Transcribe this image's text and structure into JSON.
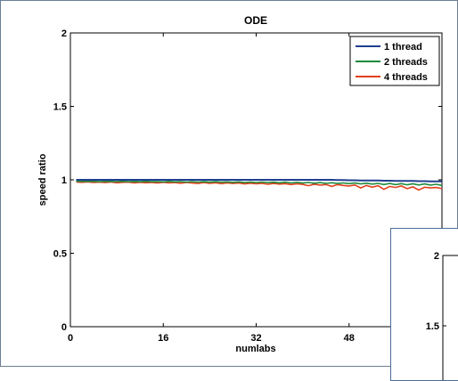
{
  "chart_data": [
    {
      "type": "line",
      "title": "ODE",
      "xlabel": "numlabs",
      "ylabel": "speed ratio",
      "xlim": [
        0,
        64
      ],
      "ylim": [
        0,
        2
      ],
      "x_ticks": [
        0,
        16,
        32,
        48
      ],
      "y_ticks": [
        0,
        0.5,
        1,
        1.5,
        2
      ],
      "y_tick_labels": [
        "0",
        "0.5",
        "1",
        "1.5",
        "2"
      ],
      "grid": false,
      "legend_position": "top-right",
      "x": [
        1,
        2,
        3,
        4,
        5,
        6,
        7,
        8,
        9,
        10,
        11,
        12,
        13,
        14,
        15,
        16,
        17,
        18,
        19,
        20,
        21,
        22,
        23,
        24,
        25,
        26,
        27,
        28,
        29,
        30,
        31,
        32,
        33,
        34,
        35,
        36,
        37,
        38,
        39,
        40,
        41,
        42,
        43,
        44,
        45,
        46,
        47,
        48,
        49,
        50,
        51,
        52,
        53,
        54,
        55,
        56,
        57,
        58,
        59,
        60,
        61,
        62,
        63,
        64
      ],
      "series": [
        {
          "name": "1 thread",
          "color": "#1f3f8f",
          "values": [
            1,
            1,
            1,
            1,
            1,
            1,
            1,
            1,
            1,
            1,
            1,
            1,
            1,
            1,
            1,
            1,
            1,
            1,
            1,
            1,
            1,
            1,
            1,
            1,
            1,
            1,
            1,
            1,
            1,
            1,
            1,
            1,
            1,
            1,
            1,
            1,
            1,
            1,
            1,
            1,
            1,
            1,
            1,
            1,
            1,
            0.998,
            0.998,
            0.997,
            0.997,
            0.996,
            0.996,
            0.995,
            0.995,
            0.994,
            0.994,
            0.993,
            0.993,
            0.992,
            0.992,
            0.991,
            0.991,
            0.99,
            0.99,
            0.99
          ]
        },
        {
          "name": "2 threads",
          "color": "#1e8a3c",
          "values": [
            0.99,
            0.99,
            0.99,
            0.99,
            0.988,
            0.99,
            0.989,
            0.988,
            0.99,
            0.988,
            0.989,
            0.987,
            0.99,
            0.987,
            0.988,
            0.986,
            0.989,
            0.986,
            0.988,
            0.985,
            0.988,
            0.985,
            0.987,
            0.984,
            0.987,
            0.984,
            0.986,
            0.983,
            0.986,
            0.982,
            0.985,
            0.982,
            0.985,
            0.981,
            0.984,
            0.98,
            0.984,
            0.979,
            0.983,
            0.978,
            0.982,
            0.977,
            0.981,
            0.976,
            0.98,
            0.975,
            0.979,
            0.974,
            0.978,
            0.972,
            0.977,
            0.971,
            0.976,
            0.968,
            0.975,
            0.967,
            0.974,
            0.966,
            0.973,
            0.965,
            0.972,
            0.964,
            0.97,
            0.962
          ]
        },
        {
          "name": "4 threads",
          "color": "#e2401c",
          "values": [
            0.985,
            0.983,
            0.986,
            0.982,
            0.984,
            0.981,
            0.985,
            0.98,
            0.983,
            0.984,
            0.979,
            0.983,
            0.98,
            0.982,
            0.978,
            0.983,
            0.979,
            0.981,
            0.977,
            0.982,
            0.978,
            0.975,
            0.981,
            0.976,
            0.98,
            0.974,
            0.979,
            0.975,
            0.978,
            0.972,
            0.977,
            0.973,
            0.976,
            0.97,
            0.975,
            0.971,
            0.974,
            0.968,
            0.973,
            0.969,
            0.96,
            0.97,
            0.964,
            0.968,
            0.955,
            0.967,
            0.962,
            0.958,
            0.965,
            0.945,
            0.962,
            0.95,
            0.96,
            0.935,
            0.955,
            0.948,
            0.958,
            0.94,
            0.952,
            0.93,
            0.95,
            0.945,
            0.948,
            0.94
          ]
        }
      ]
    },
    {
      "type": "line",
      "ylim": [
        0,
        2
      ],
      "y_ticks": [
        1.5,
        2
      ],
      "y_tick_labels": [
        "1.5",
        "2"
      ],
      "partially_visible": true
    }
  ]
}
